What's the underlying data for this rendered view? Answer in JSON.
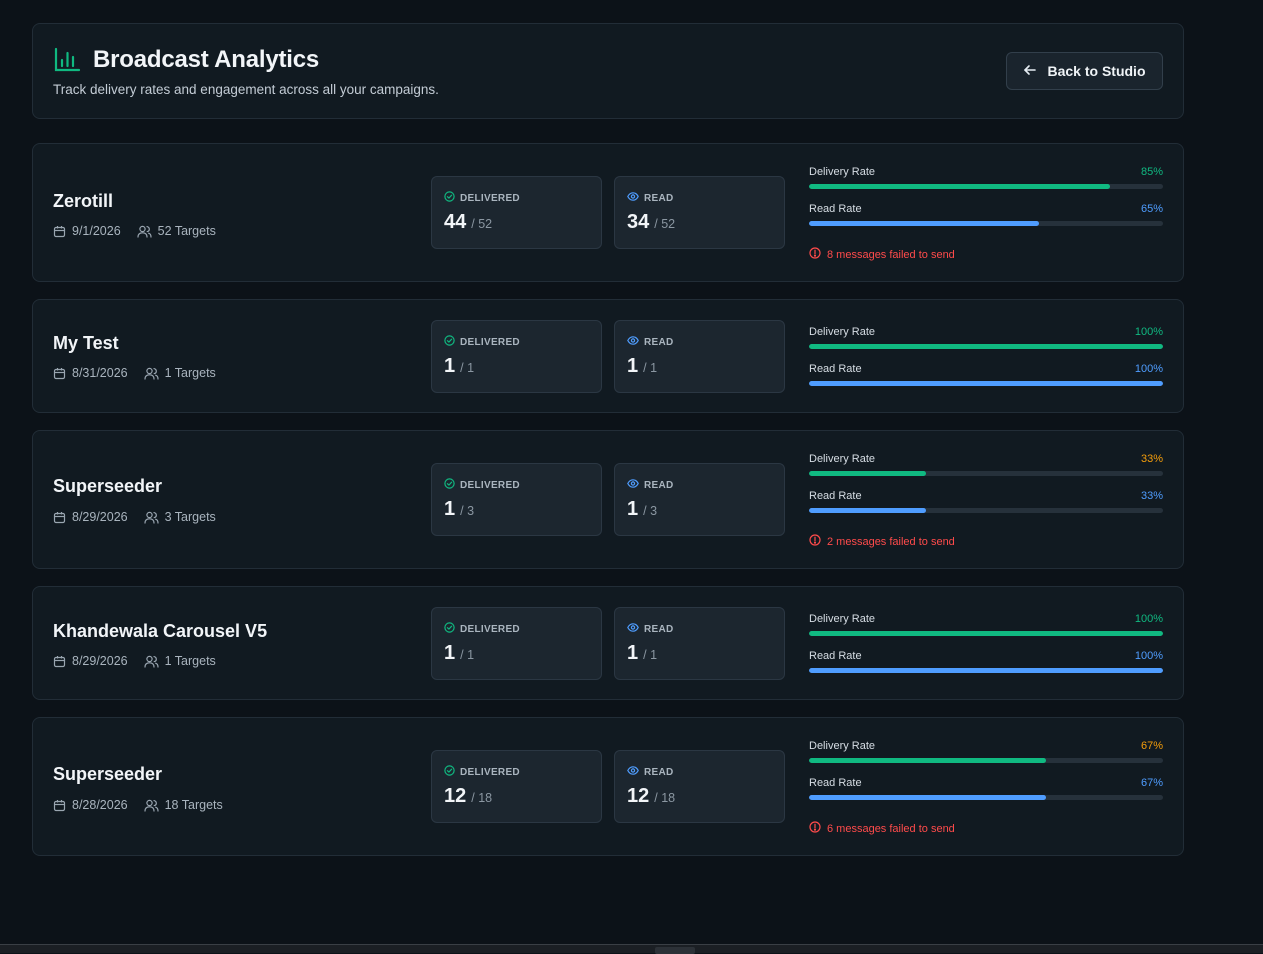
{
  "header": {
    "title": "Broadcast Analytics",
    "subtitle": "Track delivery rates and engagement across all your campaigns.",
    "back_label": "Back to Studio"
  },
  "labels": {
    "delivered": "DELIVERED",
    "read": "READ",
    "delivery_rate": "Delivery Rate",
    "read_rate": "Read Rate"
  },
  "colors": {
    "green": "#10b981",
    "blue": "#4f9dff",
    "amber": "#f59e0b",
    "red": "#ff4b4b"
  },
  "campaigns": [
    {
      "name": "Zerotill",
      "date": "9/1/2026",
      "targets": "52 Targets",
      "delivered": "44",
      "delivered_total": "/ 52",
      "read": "34",
      "read_total": "/ 52",
      "delivery_pct": "85%",
      "delivery_frac": 0.85,
      "delivery_pct_color": "#10b981",
      "read_pct": "65%",
      "read_frac": 0.65,
      "failed": "8 messages failed to send"
    },
    {
      "name": "My Test",
      "date": "8/31/2026",
      "targets": "1 Targets",
      "delivered": "1",
      "delivered_total": "/ 1",
      "read": "1",
      "read_total": "/ 1",
      "delivery_pct": "100%",
      "delivery_frac": 1.0,
      "delivery_pct_color": "#10b981",
      "read_pct": "100%",
      "read_frac": 1.0,
      "failed": ""
    },
    {
      "name": "Superseeder",
      "date": "8/29/2026",
      "targets": "3 Targets",
      "delivered": "1",
      "delivered_total": "/ 3",
      "read": "1",
      "read_total": "/ 3",
      "delivery_pct": "33%",
      "delivery_frac": 0.33,
      "delivery_pct_color": "#f59e0b",
      "read_pct": "33%",
      "read_frac": 0.33,
      "failed": "2 messages failed to send"
    },
    {
      "name": "Khandewala Carousel V5",
      "date": "8/29/2026",
      "targets": "1 Targets",
      "delivered": "1",
      "delivered_total": "/ 1",
      "read": "1",
      "read_total": "/ 1",
      "delivery_pct": "100%",
      "delivery_frac": 1.0,
      "delivery_pct_color": "#10b981",
      "read_pct": "100%",
      "read_frac": 1.0,
      "failed": ""
    },
    {
      "name": "Superseeder",
      "date": "8/28/2026",
      "targets": "18 Targets",
      "delivered": "12",
      "delivered_total": "/ 18",
      "read": "12",
      "read_total": "/ 18",
      "delivery_pct": "67%",
      "delivery_frac": 0.67,
      "delivery_pct_color": "#f59e0b",
      "read_pct": "67%",
      "read_frac": 0.67,
      "failed": "6 messages failed to send"
    }
  ]
}
